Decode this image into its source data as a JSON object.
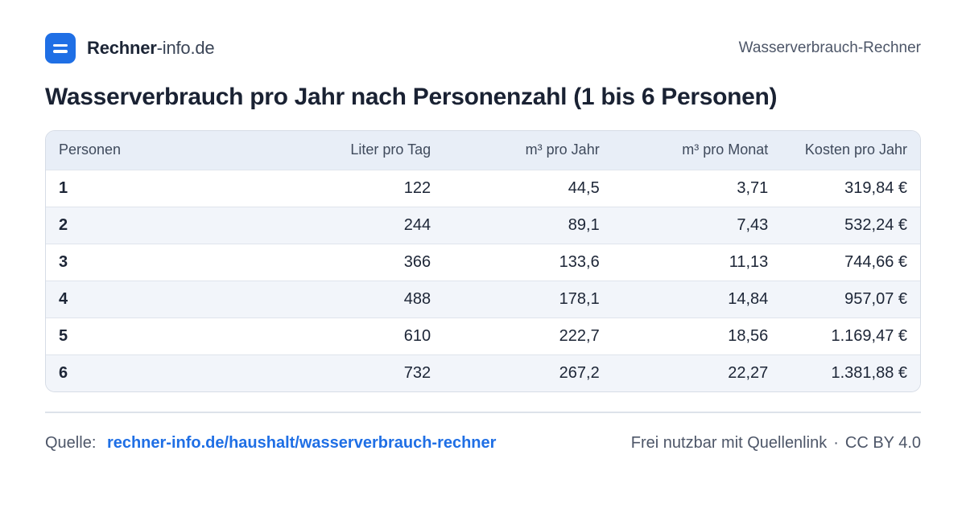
{
  "brand": {
    "name_bold": "Rechner",
    "name_rest": "-info.de"
  },
  "header": {
    "right_label": "Wasserverbrauch-Rechner"
  },
  "title": "Wasserverbrauch pro Jahr nach Personenzahl (1 bis 6 Personen)",
  "table": {
    "columns": [
      "Personen",
      "Liter pro Tag",
      "m³ pro Jahr",
      "m³ pro Monat",
      "Kosten pro Jahr"
    ],
    "rows": [
      [
        "1",
        "122",
        "44,5",
        "3,71",
        "319,84 €"
      ],
      [
        "2",
        "244",
        "89,1",
        "7,43",
        "532,24 €"
      ],
      [
        "3",
        "366",
        "133,6",
        "11,13",
        "744,66 €"
      ],
      [
        "4",
        "488",
        "178,1",
        "14,84",
        "957,07 €"
      ],
      [
        "5",
        "610",
        "222,7",
        "18,56",
        "1.169,47 €"
      ],
      [
        "6",
        "732",
        "267,2",
        "22,27",
        "1.381,88 €"
      ]
    ]
  },
  "footer": {
    "source_label": "Quelle:",
    "source_link": "rechner-info.de/haushalt/wasserverbrauch-rechner",
    "license_text": "Frei nutzbar mit Quellenlink",
    "separator": "·",
    "license": "CC BY 4.0"
  },
  "colors": {
    "accent": "#1f6fe5",
    "header_bg": "#e8eef7",
    "stripe_bg": "#f2f5fa"
  }
}
